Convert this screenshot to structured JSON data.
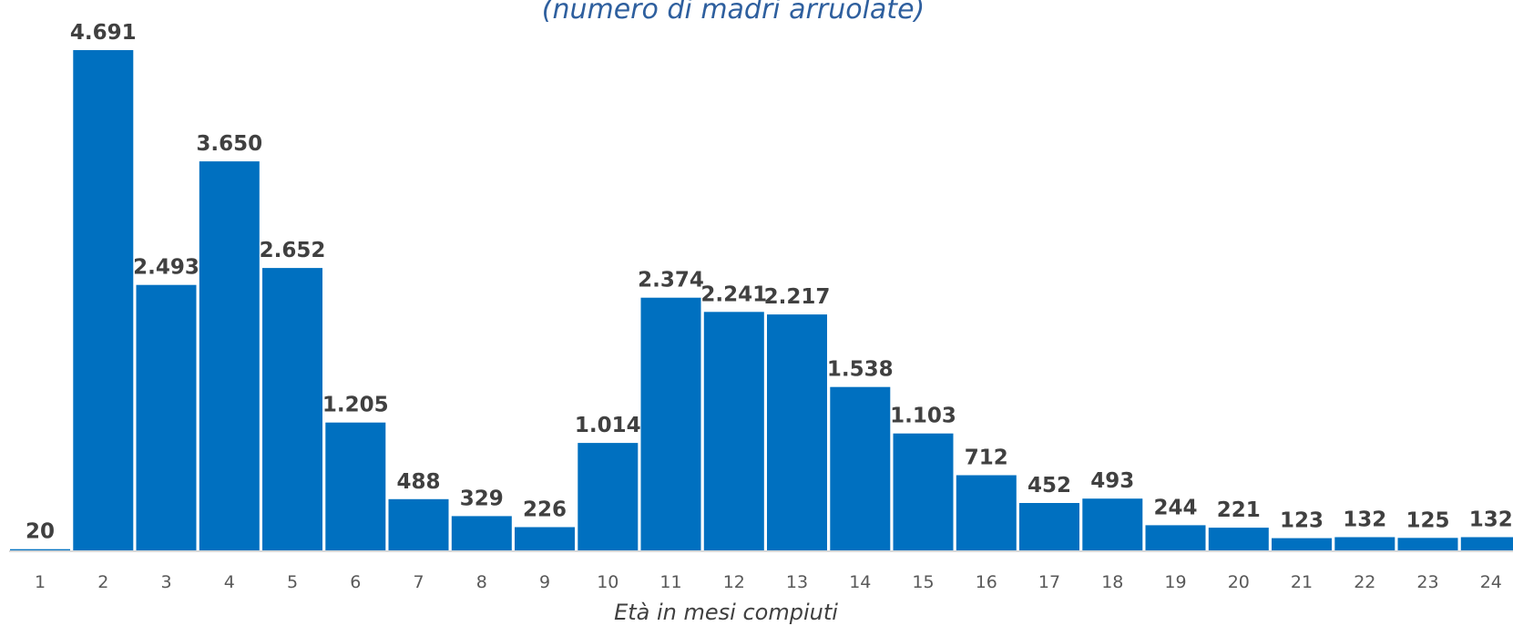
{
  "chart_data": {
    "type": "bar",
    "title": "(numero di madri arruolate)",
    "xlabel": "Età in mesi  compiuti",
    "ylabel": "",
    "categories": [
      "1",
      "2",
      "3",
      "4",
      "5",
      "6",
      "7",
      "8",
      "9",
      "10",
      "11",
      "12",
      "13",
      "14",
      "15",
      "16",
      "17",
      "18",
      "19",
      "20",
      "21",
      "22",
      "23",
      "24"
    ],
    "values": [
      20,
      4691,
      2493,
      3650,
      2652,
      1205,
      488,
      329,
      226,
      1014,
      2374,
      2241,
      2217,
      1538,
      1103,
      712,
      452,
      493,
      244,
      221,
      123,
      132,
      125,
      132
    ],
    "value_labels": [
      "20",
      "4.691",
      "2.493",
      "3.650",
      "2.652",
      "1.205",
      "488",
      "329",
      "226",
      "1.014",
      "2.374",
      "2.241",
      "2.217",
      "1.538",
      "1.103",
      "712",
      "452",
      "493",
      "244",
      "221",
      "123",
      "132",
      "125",
      "132"
    ],
    "ylim": [
      0,
      4691
    ],
    "grid": false,
    "legend": "none",
    "bar_color": "#0070c0",
    "axis_color": "#d9d9d9"
  }
}
